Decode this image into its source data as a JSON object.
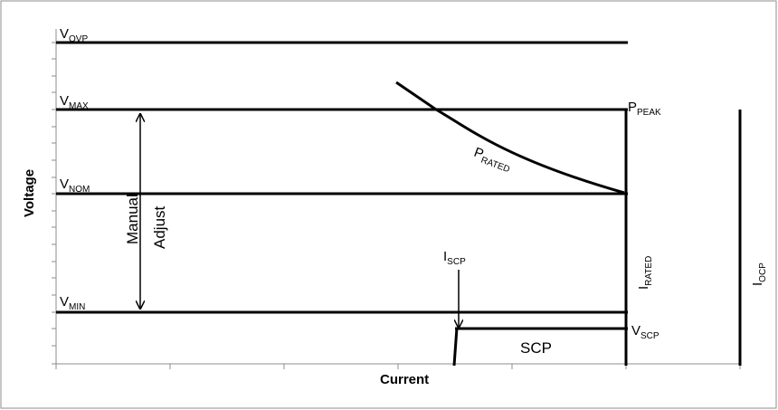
{
  "diagram": {
    "axes": {
      "x_label": "Current",
      "y_label": "Voltage"
    },
    "levels": {
      "vovp": {
        "main": "V",
        "sub": "OVP"
      },
      "vmax": {
        "main": "V",
        "sub": "MAX"
      },
      "vnom": {
        "main": "V",
        "sub": "NOM"
      },
      "vmin": {
        "main": "V",
        "sub": "MIN"
      },
      "vscp": {
        "main": "V",
        "sub": "SCP"
      }
    },
    "points": {
      "ppeak": {
        "main": "P",
        "sub": "PEAK"
      },
      "prated": {
        "main": "P",
        "sub": "RATED"
      }
    },
    "currents": {
      "iscp": {
        "main": "I",
        "sub": "SCP"
      },
      "irated": {
        "main": "I",
        "sub": "RATED"
      },
      "iocp": {
        "main": "I",
        "sub": "OCP"
      }
    },
    "regions": {
      "scp_label": "SCP",
      "manual_adjust_line1": "Manual",
      "manual_adjust_line2": "Adjust"
    },
    "colors": {
      "line": "#000000",
      "frame": "#7f7f7f",
      "axis": "#8c8c8c"
    }
  }
}
